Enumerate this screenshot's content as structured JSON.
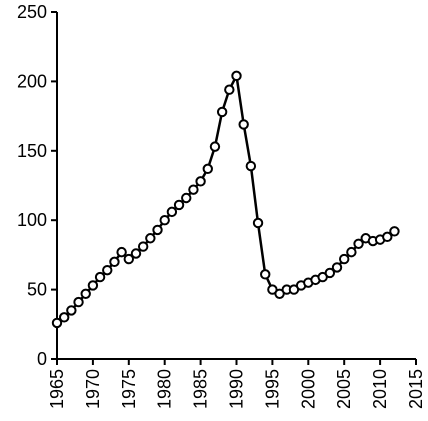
{
  "chart_data": {
    "type": "line",
    "title": "",
    "xlabel": "",
    "ylabel": "",
    "xlim": [
      1965,
      2015
    ],
    "ylim": [
      0,
      250
    ],
    "grid": false,
    "x_ticks": [
      1965,
      1970,
      1975,
      1980,
      1985,
      1990,
      1995,
      2000,
      2005,
      2010,
      2015
    ],
    "y_ticks": [
      0,
      50,
      100,
      150,
      200,
      250
    ],
    "series": [
      {
        "x": [
          1965,
          1966,
          1967,
          1968,
          1969,
          1970,
          1971,
          1972,
          1973,
          1974,
          1975,
          1976,
          1977,
          1978,
          1979,
          1980,
          1981,
          1982,
          1983,
          1984,
          1985,
          1986,
          1987,
          1988,
          1989,
          1990,
          1991,
          1992,
          1993,
          1994,
          1995,
          1996,
          1997,
          1998,
          1999,
          2000,
          2001,
          2002,
          2003,
          2004,
          2005,
          2006,
          2007,
          2008,
          2009,
          2010,
          2011,
          2012
        ],
        "values": [
          26,
          30,
          35,
          41,
          47,
          53,
          59,
          64,
          70,
          77,
          72,
          76,
          81,
          87,
          93,
          100,
          106,
          111,
          116,
          122,
          128,
          137,
          153,
          178,
          194,
          204,
          169,
          139,
          98,
          61,
          50,
          47,
          50,
          50,
          53,
          55,
          57,
          59,
          62,
          66,
          72,
          77,
          83,
          87,
          85,
          86,
          88,
          92
        ]
      }
    ]
  }
}
